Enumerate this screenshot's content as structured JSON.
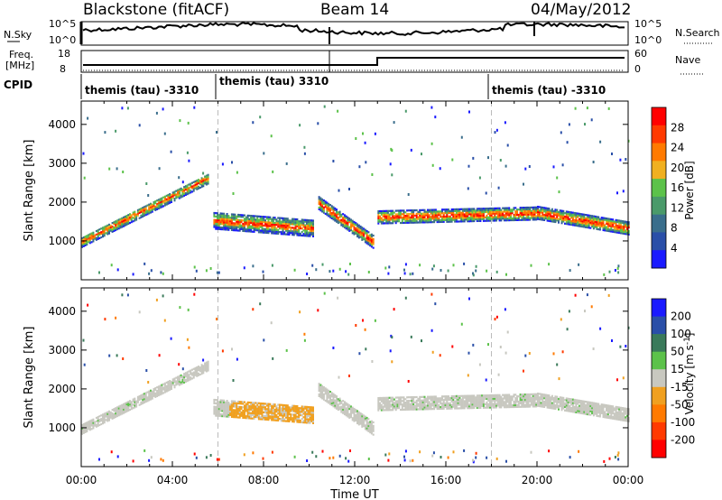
{
  "header": {
    "radar": "Blackstone (fitACF)",
    "beam": "Beam 14",
    "date": "04/May/2012"
  },
  "side_labels": {
    "nsky": "N.Sky",
    "freq_line1": "Freq.",
    "freq_line2": "[MHz]",
    "cpid": "CPID",
    "nsearch": "N.Search",
    "nave": "Nave"
  },
  "noise_panel": {
    "left_ticks": [
      "10^5",
      "10^0"
    ],
    "right_ticks": [
      "10^5",
      "10^0"
    ]
  },
  "freq_panel": {
    "left_ticks": [
      18,
      8
    ],
    "right_ticks": [
      60,
      0
    ]
  },
  "cpid_segments": [
    {
      "label": "themis (tau) -3310",
      "start_hour": 0,
      "end_hour": 6
    },
    {
      "label": "themis (tau) 3310",
      "start_hour": 6,
      "end_hour": 18
    },
    {
      "label": "themis (tau) -3310",
      "start_hour": 18,
      "end_hour": 24
    }
  ],
  "colors": {
    "power_scale": [
      "#1a1aff",
      "#2a4fa8",
      "#3a6e8c",
      "#4a9a6a",
      "#5cc24a",
      "#f0b020",
      "#ff7a00",
      "#ff3a00",
      "#ff0000"
    ],
    "velocity_scale": [
      "#1a1aff",
      "#2a4fa8",
      "#3a7a5a",
      "#5cc24a",
      "#c8c8c0",
      "#f0a020",
      "#ff7a00",
      "#ff3a00",
      "#ff0000"
    ],
    "velocity_fill": "#c8c8c0"
  },
  "chart_data": [
    {
      "type": "heatmap",
      "title": "",
      "xlabel": "Time UT",
      "ylabel": "Slant Range [km]",
      "xlim": [
        0,
        24
      ],
      "ylim": [
        0,
        4600
      ],
      "x_ticks": [
        "00:00",
        "04:00",
        "08:00",
        "12:00",
        "16:00",
        "20:00",
        "00:00"
      ],
      "y_ticks": [
        1000,
        2000,
        3000,
        4000
      ],
      "colorbar": {
        "label": "Power [dB]",
        "ticks": [
          4,
          8,
          12,
          16,
          20,
          24,
          28
        ]
      },
      "echo_bands": [
        {
          "start_hour": 0.0,
          "end_hour": 5.6,
          "range_start_km": 1000,
          "range_end_km": 2650,
          "width_km": 260
        },
        {
          "start_hour": 5.8,
          "end_hour": 10.2,
          "range_start_km": 1550,
          "range_end_km": 1350,
          "width_km": 420
        },
        {
          "start_hour": 10.4,
          "end_hour": 12.8,
          "range_start_km": 2000,
          "range_end_km": 1000,
          "width_km": 320
        },
        {
          "start_hour": 13.0,
          "end_hour": 20.0,
          "range_start_km": 1650,
          "range_end_km": 1750,
          "width_km": 350
        },
        {
          "start_hour": 20.0,
          "end_hour": 24.0,
          "range_start_km": 1750,
          "range_end_km": 1350,
          "width_km": 320
        }
      ]
    },
    {
      "type": "heatmap",
      "title": "",
      "xlabel": "Time UT",
      "ylabel": "Slant Range [km]",
      "xlim": [
        0,
        24
      ],
      "ylim": [
        0,
        4600
      ],
      "x_ticks": [
        "00:00",
        "04:00",
        "08:00",
        "12:00",
        "16:00",
        "20:00",
        "00:00"
      ],
      "y_ticks": [
        1000,
        2000,
        3000,
        4000
      ],
      "colorbar": {
        "label": "Velocity [m s^-1]",
        "ticks": [
          200,
          100,
          50,
          15,
          -15,
          -50,
          -100,
          -200
        ]
      }
    }
  ]
}
